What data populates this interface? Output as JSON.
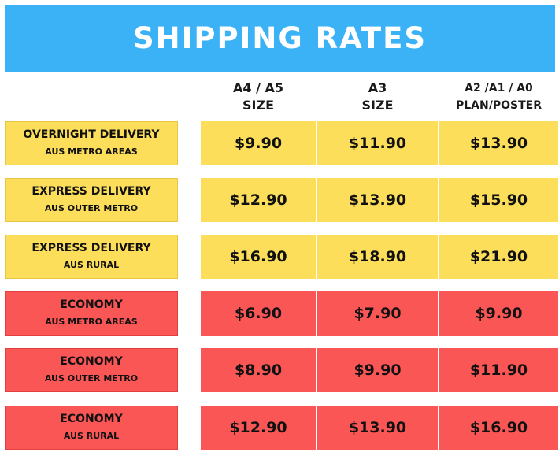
{
  "title": "SHIPPING RATES",
  "columns": [
    {
      "line1": "A4 / A5",
      "line2": "SIZE"
    },
    {
      "line1": "A3",
      "line2": "SIZE"
    },
    {
      "line1": "A2 /A1 / A0",
      "line2": "PLAN/POSTER"
    }
  ],
  "rows": [
    {
      "name": "OVERNIGHT DELIVERY",
      "area": "AUS METRO AREAS",
      "prices": [
        "$9.90",
        "$11.90",
        "$13.90"
      ],
      "color": "#fcde5a"
    },
    {
      "name": "EXPRESS DELIVERY",
      "area": "AUS OUTER METRO",
      "prices": [
        "$12.90",
        "$13.90",
        "$15.90"
      ],
      "color": "#fcde5a"
    },
    {
      "name": "EXPRESS DELIVERY",
      "area": "AUS RURAL",
      "prices": [
        "$16.90",
        "$18.90",
        "$21.90"
      ],
      "color": "#fcde5a"
    },
    {
      "name": "ECONOMY",
      "area": "AUS METRO AREAS",
      "prices": [
        "$6.90",
        "$7.90",
        "$9.90"
      ],
      "color": "#fa5655"
    },
    {
      "name": "ECONOMY",
      "area": "AUS OUTER METRO",
      "prices": [
        "$8.90",
        "$9.90",
        "$11.90"
      ],
      "color": "#fa5655"
    },
    {
      "name": "ECONOMY",
      "area": "AUS RURAL",
      "prices": [
        "$12.90",
        "$13.90",
        "$16.90"
      ],
      "color": "#fa5655"
    }
  ],
  "colors": {
    "banner": "#3bb2f6",
    "express_tier": "#fcde5a",
    "economy_tier": "#fa5655"
  }
}
